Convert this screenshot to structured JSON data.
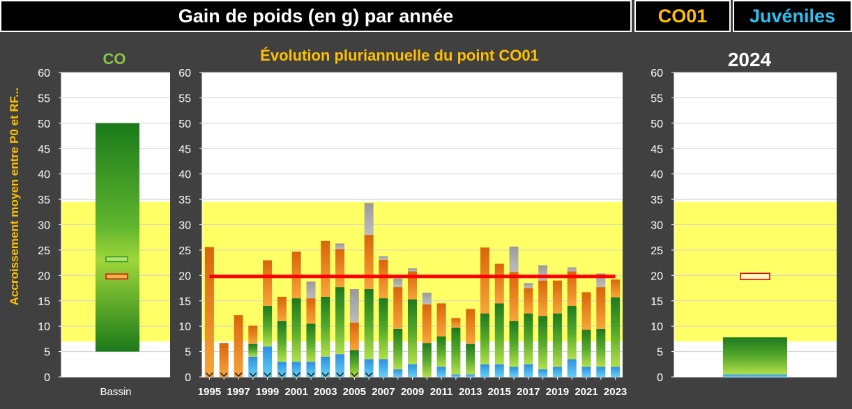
{
  "header": {
    "title": "Gain de poids (en g) par année",
    "site_code": "CO01",
    "stage": "Juvéniles"
  },
  "colors": {
    "background": "#404040",
    "reference_band": "#ffff66",
    "reference_line": "#ff0000",
    "title_gold": "#ffc000",
    "title_green": "#8bc34a",
    "stage_blue": "#2ec1f0"
  },
  "chart_data": [
    {
      "type": "bar",
      "title": "CO",
      "ylabel": "Accroissement moyen entre P0 et RF...",
      "categories": [
        "Bassin"
      ],
      "ylim": [
        0,
        60
      ],
      "yticks": [
        0,
        5,
        10,
        15,
        20,
        25,
        30,
        35,
        40,
        45,
        50,
        55,
        60
      ],
      "reference_band": [
        7,
        34.5
      ],
      "range_bar": {
        "low": 5,
        "high": 50
      },
      "markers": [
        {
          "name": "green",
          "value": 23.2
        },
        {
          "name": "red",
          "value": 19.8
        }
      ]
    },
    {
      "type": "bar",
      "title": "Évolution pluriannuelle du point CO01",
      "stacked": true,
      "ylim": [
        0,
        60
      ],
      "yticks": [
        0,
        5,
        10,
        15,
        20,
        25,
        30,
        35,
        40,
        45,
        50,
        55,
        60
      ],
      "reference_band": [
        7,
        34.5
      ],
      "reference_line": 19.8,
      "x": [
        1995,
        1996,
        1997,
        1998,
        1999,
        2000,
        2001,
        2002,
        2003,
        2004,
        2005,
        2006,
        2007,
        2008,
        2009,
        2010,
        2011,
        2012,
        2013,
        2014,
        2015,
        2016,
        2017,
        2018,
        2019,
        2020,
        2021,
        2022,
        2023
      ],
      "xtick_labels": [
        "1995",
        "1997",
        "1999",
        "2001",
        "2003",
        "2005",
        "2007",
        "2009",
        "2011",
        "2013",
        "2015",
        "2017",
        "2019",
        "2021",
        "2023"
      ],
      "series": [
        {
          "name": "blue",
          "values": [
            0,
            0,
            0,
            4,
            6,
            3,
            3,
            3,
            4,
            4.5,
            0,
            3.5,
            3.5,
            1.5,
            2.5,
            0,
            2,
            0.5,
            0.5,
            2.5,
            2.5,
            2,
            2.5,
            1.5,
            2,
            3.5,
            2,
            2,
            2
          ]
        },
        {
          "name": "green",
          "values": [
            0,
            0,
            0,
            2.5,
            8,
            8,
            12.5,
            7.5,
            11.8,
            13.2,
            5.3,
            13.8,
            12,
            8,
            12.8,
            6.7,
            6,
            9.2,
            6,
            10,
            12,
            9,
            10,
            10.5,
            10.5,
            10.5,
            7.3,
            7.5,
            13.7
          ]
        },
        {
          "name": "orange",
          "values": [
            25.6,
            6.7,
            12.2,
            3.6,
            9,
            4.8,
            9.2,
            5,
            11,
            7.5,
            5.4,
            10.7,
            7.6,
            8.2,
            5.5,
            7.6,
            6.5,
            1.9,
            6.9,
            13,
            7.8,
            9.7,
            5,
            7,
            6.5,
            6.8,
            7.4,
            8.2,
            3.5
          ]
        },
        {
          "name": "gray",
          "values": [
            0,
            0,
            0,
            0,
            0,
            0,
            0,
            3.3,
            0,
            1.1,
            6.6,
            6.3,
            0.7,
            1.7,
            0.6,
            2.3,
            0,
            0,
            0,
            0,
            0,
            5,
            1,
            3,
            0,
            0.8,
            0,
            2.7,
            0
          ]
        }
      ],
      "zero_markers": [
        1995,
        1996,
        1997,
        1998,
        1999,
        2000,
        2001,
        2002,
        2003,
        2004,
        2005,
        2006
      ]
    },
    {
      "type": "bar",
      "title": "2024",
      "ylim": [
        0,
        60
      ],
      "yticks": [
        0,
        5,
        10,
        15,
        20,
        25,
        30,
        35,
        40,
        45,
        50,
        55,
        60
      ],
      "reference_band": [
        7,
        34.5
      ],
      "series": [
        {
          "name": "blue",
          "values": [
            0.5
          ]
        },
        {
          "name": "green",
          "values": [
            7.3
          ]
        }
      ],
      "marker": {
        "name": "red",
        "value": 19.8
      }
    }
  ]
}
